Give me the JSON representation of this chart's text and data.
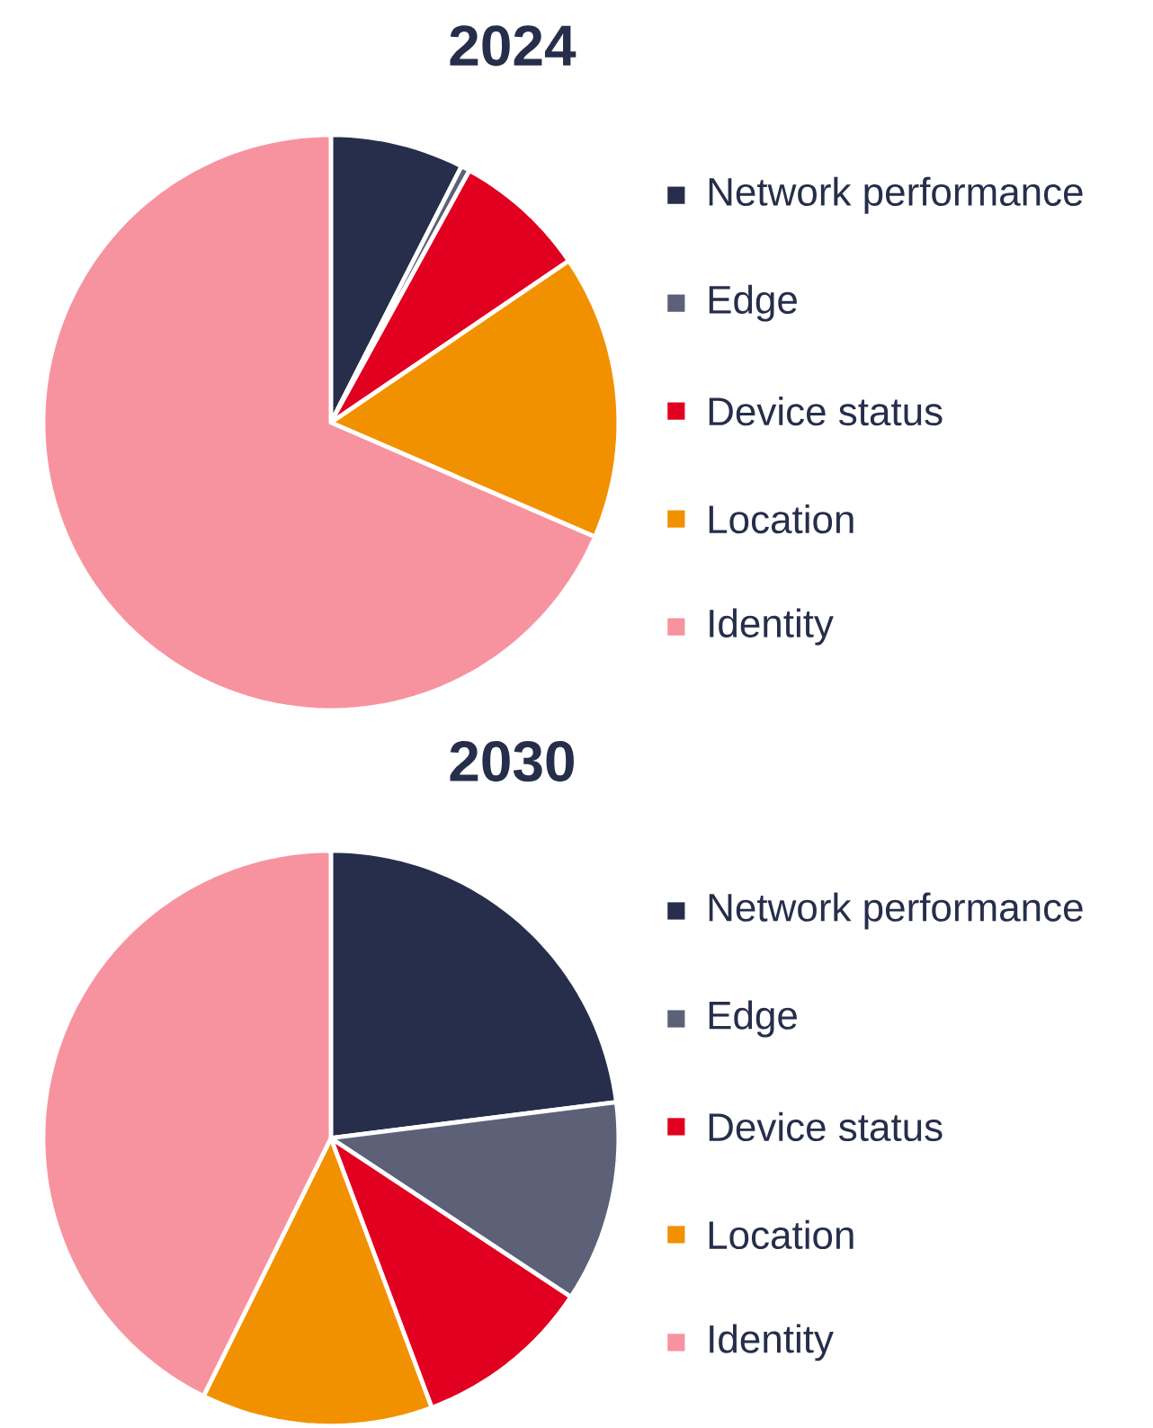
{
  "chart_data": [
    {
      "type": "pie",
      "title": "2024",
      "categories": [
        "Network performance",
        "Edge",
        "Device status",
        "Location",
        "Identity"
      ],
      "values": [
        7.5,
        0.5,
        7.5,
        16,
        68.5
      ],
      "colors": [
        "#262e4b",
        "#5c6178",
        "#e1001f",
        "#f29100",
        "#f7939f"
      ],
      "legend": "right"
    },
    {
      "type": "pie",
      "title": "2030",
      "categories": [
        "Network performance",
        "Edge",
        "Device status",
        "Location",
        "Identity"
      ],
      "values": [
        23,
        11.3,
        10,
        13,
        42.7
      ],
      "colors": [
        "#262e4b",
        "#5c6178",
        "#e1001f",
        "#f29100",
        "#f7939f"
      ],
      "legend": "right"
    }
  ]
}
